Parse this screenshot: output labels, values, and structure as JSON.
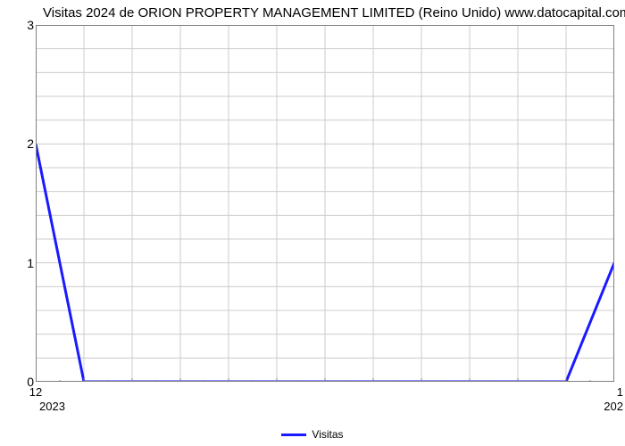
{
  "chart": {
    "type": "line",
    "title": "Visitas 2024 de ORION PROPERTY MANAGEMENT LIMITED (Reino Unido) www.datocapital.com",
    "title_fontsize": 15,
    "title_color": "#000000",
    "background_color": "#ffffff",
    "plot_border_color": "#808080",
    "grid_color": "#cccccc",
    "grid_major_x_count": 13,
    "ytick_minor_per_major": 5,
    "y": {
      "min": 0,
      "max": 3,
      "ticks": [
        0,
        1,
        2,
        3
      ],
      "label_fontsize": 14
    },
    "x": {
      "tick_labels_top": [
        "12",
        "1"
      ],
      "tick_labels_positions": [
        0,
        12
      ],
      "year_labels": [
        "2023",
        "202"
      ],
      "year_positions": [
        0,
        12
      ],
      "label_fontsize": 13
    },
    "series": {
      "name": "Visitas",
      "color": "#1a1aff",
      "line_width": 3,
      "points_x": [
        0,
        1,
        2,
        3,
        4,
        5,
        6,
        7,
        8,
        9,
        10,
        11,
        12
      ],
      "points_y": [
        2,
        0,
        0,
        0,
        0,
        0,
        0,
        0,
        0,
        0,
        0,
        0,
        1
      ]
    },
    "legend": {
      "label": "Visitas",
      "swatch_color": "#1a1aff",
      "fontsize": 12
    }
  }
}
